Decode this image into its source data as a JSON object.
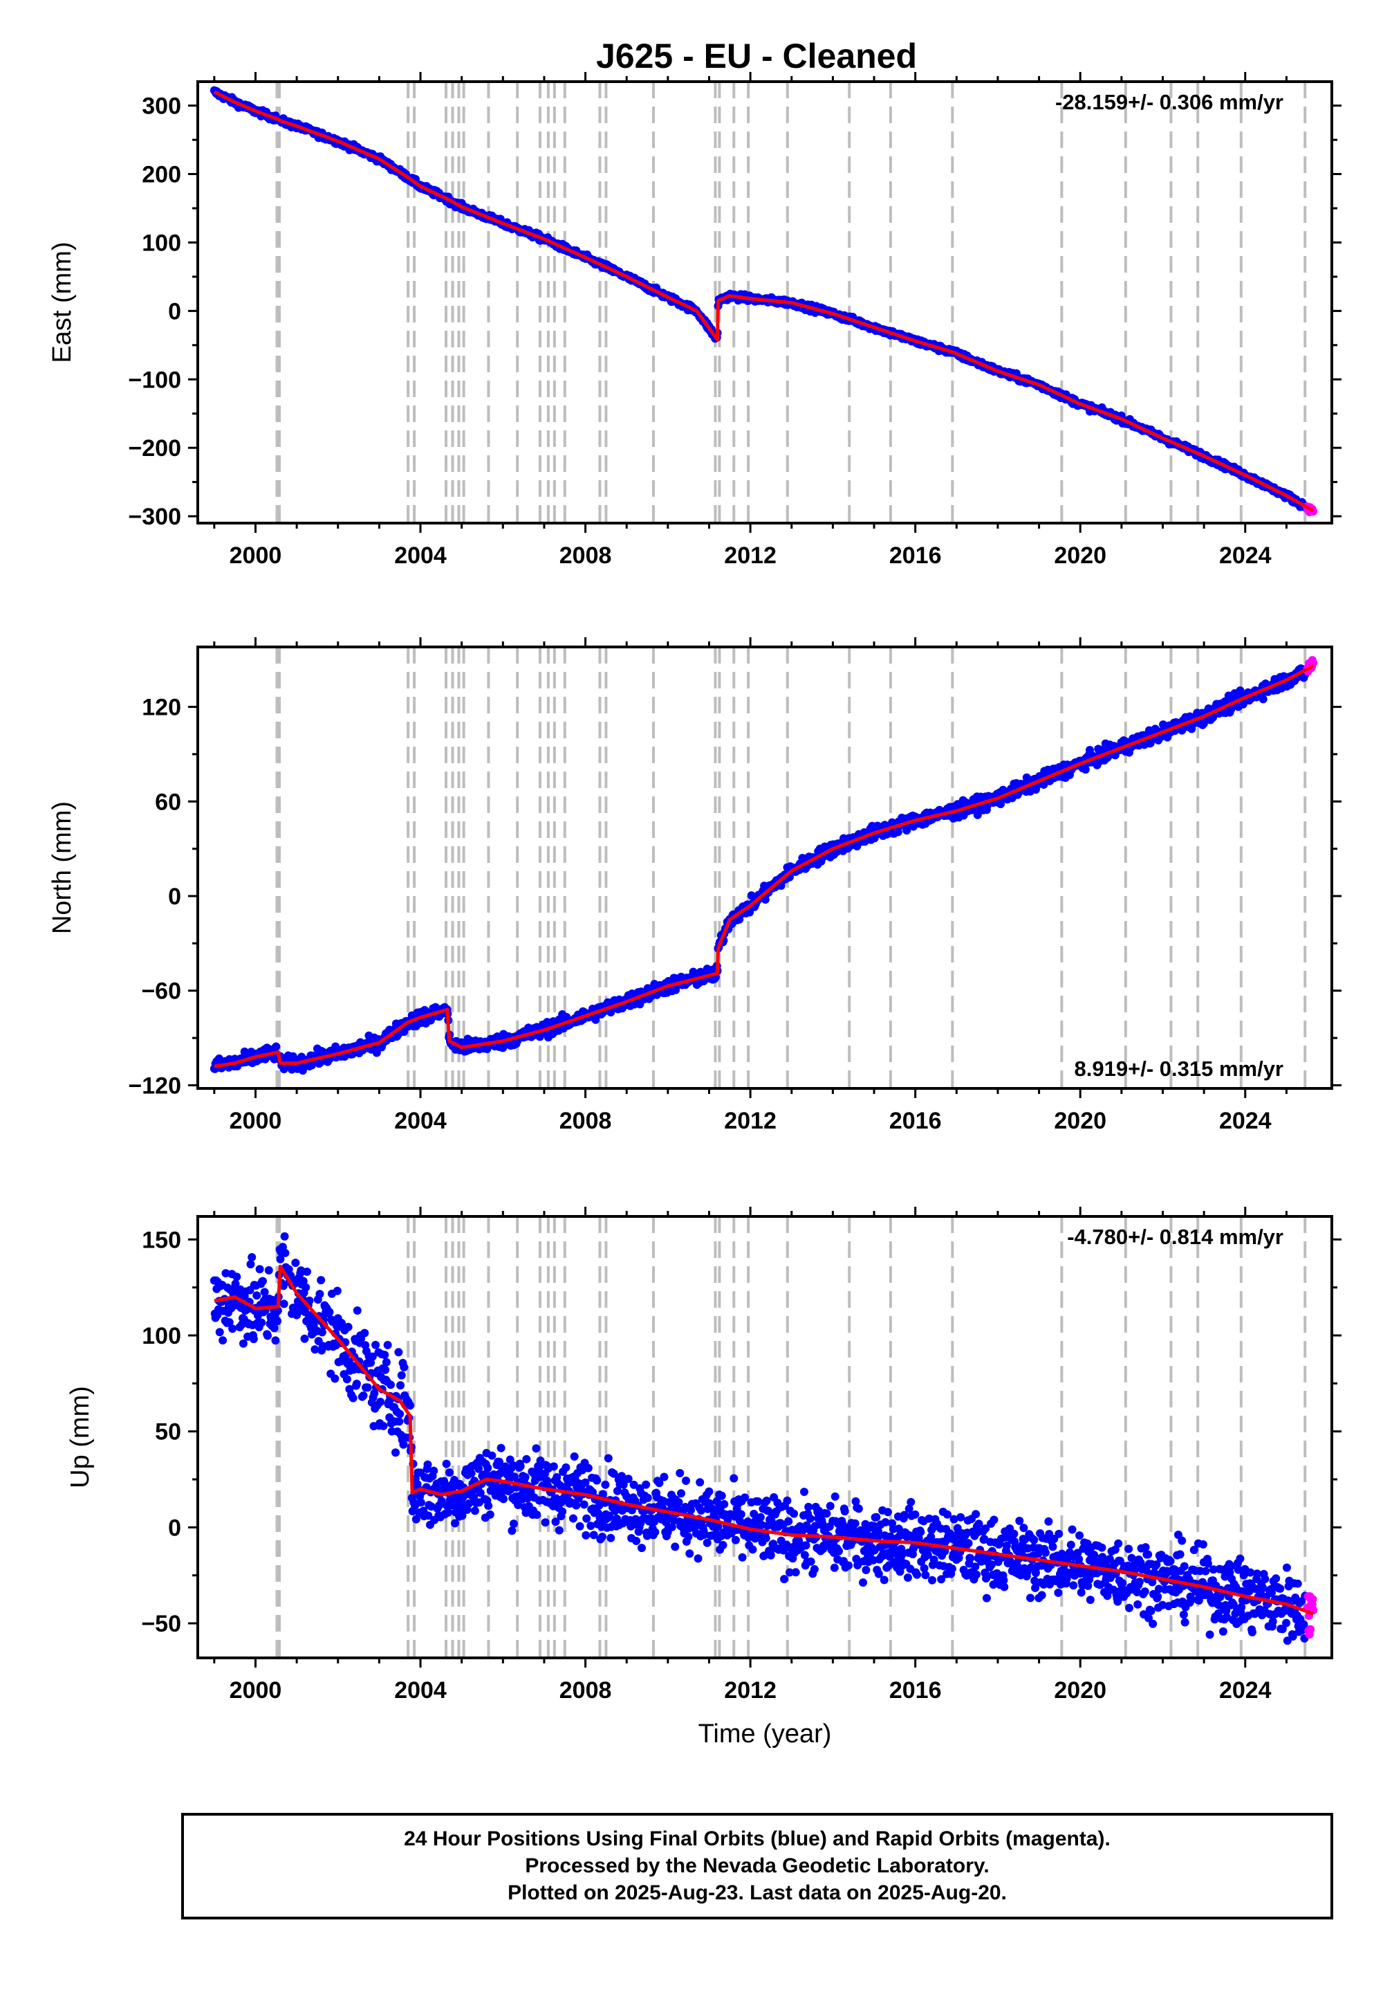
{
  "title": "J625  - EU - Cleaned",
  "colors": {
    "final": "#0000ff",
    "rapid": "#ff00ff",
    "model": "#ff0000",
    "event_lines": "#bdbdbd",
    "frame": "#000000"
  },
  "chart_data": [
    {
      "type": "scatter",
      "panel": "east",
      "ylabel": "East (mm)",
      "xlabel": "",
      "xlim": [
        1998.6,
        2026.1
      ],
      "ylim": [
        -310,
        335
      ],
      "xticks": [
        2000,
        2004,
        2008,
        2012,
        2016,
        2020,
        2024
      ],
      "xtick_labels": [
        "2000",
        "2004",
        "2008",
        "2012",
        "2016",
        "2020",
        "2024"
      ],
      "yticks": [
        300,
        200,
        100,
        0,
        -100,
        -200,
        -300
      ],
      "ytick_labels": [
        "300",
        "200",
        "100",
        "0",
        "−100",
        "−200",
        "−300"
      ],
      "rate_text": "-28.159+/- 0.306 mm/yr",
      "rate_position": "top-right",
      "series": [
        {
          "role": "final",
          "x": [
            1999.0,
            1999.5,
            2000.0,
            2000.55,
            2000.6,
            2001.0,
            2002.0,
            2003.0,
            2003.7,
            2004.0,
            2004.7,
            2005.0,
            2006.0,
            2007.0,
            2008.0,
            2009.0,
            2010.0,
            2010.7,
            2011.2,
            2011.22,
            2011.5,
            2012.0,
            2013.0,
            2014.0,
            2015.0,
            2016.0,
            2016.9,
            2018.0,
            2019.0,
            2020.0,
            2021.0,
            2022.0,
            2023.0,
            2024.0,
            2025.0,
            2025.45
          ],
          "y": [
            320,
            305,
            292,
            280,
            278,
            270,
            248,
            222,
            195,
            182,
            162,
            152,
            128,
            105,
            78,
            50,
            20,
            0,
            -42,
            15,
            22,
            18,
            12,
            -4,
            -24,
            -44,
            -60,
            -88,
            -108,
            -136,
            -158,
            -186,
            -212,
            -240,
            -270,
            -285
          ]
        },
        {
          "role": "rapid",
          "x": [
            2025.5,
            2025.65
          ],
          "y": [
            -288,
            -292
          ]
        }
      ],
      "model": {
        "x": [
          1999.0,
          1999.5,
          2000.0,
          2000.55,
          2000.6,
          2001.0,
          2002.0,
          2003.0,
          2003.7,
          2004.0,
          2004.7,
          2005.0,
          2006.0,
          2007.0,
          2008.0,
          2009.0,
          2010.0,
          2010.7,
          2011.2,
          2011.22,
          2011.5,
          2012.0,
          2013.0,
          2014.0,
          2015.0,
          2016.0,
          2016.9,
          2018.0,
          2019.0,
          2020.0,
          2021.0,
          2022.0,
          2023.0,
          2024.0,
          2025.0,
          2025.65
        ],
        "y": [
          320,
          305,
          292,
          280,
          278,
          270,
          248,
          222,
          195,
          182,
          162,
          152,
          128,
          105,
          78,
          50,
          20,
          0,
          -42,
          15,
          22,
          18,
          12,
          -4,
          -24,
          -44,
          -60,
          -88,
          -108,
          -136,
          -158,
          -186,
          -212,
          -240,
          -270,
          -292
        ]
      }
    },
    {
      "type": "scatter",
      "panel": "north",
      "ylabel": "North (mm)",
      "xlabel": "",
      "xlim": [
        1998.6,
        2026.1
      ],
      "ylim": [
        -122,
        158
      ],
      "xticks": [
        2000,
        2004,
        2008,
        2012,
        2016,
        2020,
        2024
      ],
      "xtick_labels": [
        "2000",
        "2004",
        "2008",
        "2012",
        "2016",
        "2020",
        "2024"
      ],
      "yticks": [
        120,
        60,
        0,
        -60,
        -120
      ],
      "ytick_labels": [
        "120",
        "60",
        "0",
        "−60",
        "−120"
      ],
      "rate_text": "8.919+/- 0.315 mm/yr",
      "rate_position": "bottom-right",
      "series": [
        {
          "role": "final",
          "x": [
            1999.0,
            1999.5,
            2000.0,
            2000.55,
            2000.6,
            2001.0,
            2002.0,
            2003.0,
            2003.7,
            2004.0,
            2004.65,
            2004.7,
            2005.0,
            2006.0,
            2007.0,
            2008.0,
            2009.0,
            2010.0,
            2011.2,
            2011.22,
            2011.5,
            2012.0,
            2013.0,
            2014.0,
            2015.0,
            2016.0,
            2017.0,
            2018.0,
            2019.0,
            2020.0,
            2021.0,
            2022.0,
            2023.0,
            2024.0,
            2025.0,
            2025.45
          ],
          "y": [
            -108,
            -106,
            -102,
            -99,
            -106,
            -106,
            -100,
            -93,
            -80,
            -77,
            -72,
            -92,
            -96,
            -92,
            -85,
            -76,
            -67,
            -57,
            -49,
            -33,
            -15,
            -6,
            16,
            30,
            40,
            48,
            54,
            62,
            73,
            84,
            94,
            104,
            114,
            126,
            137,
            142
          ]
        },
        {
          "role": "rapid",
          "x": [
            2025.5,
            2025.65
          ],
          "y": [
            144,
            148
          ]
        }
      ],
      "model": {
        "x": [
          1999.0,
          1999.5,
          2000.0,
          2000.55,
          2000.6,
          2001.0,
          2002.0,
          2003.0,
          2003.7,
          2004.0,
          2004.65,
          2004.7,
          2005.0,
          2006.0,
          2007.0,
          2008.0,
          2009.0,
          2010.0,
          2011.2,
          2011.22,
          2011.5,
          2012.0,
          2013.0,
          2014.0,
          2015.0,
          2016.0,
          2017.0,
          2018.0,
          2019.0,
          2020.0,
          2021.0,
          2022.0,
          2023.0,
          2024.0,
          2025.0,
          2025.65
        ],
        "y": [
          -108,
          -106,
          -102,
          -99,
          -106,
          -106,
          -100,
          -93,
          -80,
          -77,
          -72,
          -92,
          -96,
          -92,
          -85,
          -76,
          -67,
          -57,
          -49,
          -33,
          -15,
          -6,
          16,
          30,
          40,
          48,
          54,
          62,
          73,
          84,
          94,
          104,
          114,
          126,
          137,
          146
        ]
      }
    },
    {
      "type": "scatter",
      "panel": "up",
      "ylabel": "Up (mm)",
      "xlabel": "Time (year)",
      "xlim": [
        1998.6,
        2026.1
      ],
      "ylim": [
        -68,
        162
      ],
      "xticks": [
        2000,
        2004,
        2008,
        2012,
        2016,
        2020,
        2024
      ],
      "xtick_labels": [
        "2000",
        "2004",
        "2008",
        "2012",
        "2016",
        "2020",
        "2024"
      ],
      "yticks": [
        150,
        100,
        50,
        0,
        -50
      ],
      "ytick_labels": [
        "150",
        "100",
        "50",
        "0",
        "−50"
      ],
      "rate_text": "-4.780+/- 0.814 mm/yr",
      "rate_position": "top-right",
      "series": [
        {
          "role": "final",
          "x": [
            1999.0,
            1999.5,
            2000.0,
            2000.55,
            2000.6,
            2001.0,
            2001.5,
            2002.0,
            2002.5,
            2003.0,
            2003.5,
            2003.75,
            2003.8,
            2004.0,
            2004.5,
            2005.0,
            2005.6,
            2006.0,
            2007.0,
            2008.0,
            2009.0,
            2010.0,
            2011.0,
            2012.0,
            2013.0,
            2014.0,
            2015.0,
            2016.0,
            2017.0,
            2018.0,
            2019.0,
            2020.0,
            2021.0,
            2022.0,
            2023.0,
            2024.0,
            2025.0,
            2025.45
          ],
          "y": [
            118,
            120,
            114,
            115,
            136,
            122,
            110,
            98,
            85,
            72,
            66,
            58,
            18,
            20,
            17,
            19,
            25,
            24,
            20,
            17,
            12,
            8,
            4,
            -1,
            -4,
            -5,
            -7,
            -8,
            -11,
            -14,
            -17,
            -20,
            -23,
            -27,
            -31,
            -36,
            -40,
            -44
          ]
        },
        {
          "role": "rapid",
          "x": [
            2025.5,
            2025.65
          ],
          "y": [
            -44,
            -45
          ]
        }
      ],
      "model": {
        "x": [
          1999.0,
          1999.5,
          2000.0,
          2000.55,
          2000.6,
          2001.0,
          2001.5,
          2002.0,
          2002.5,
          2003.0,
          2003.5,
          2003.75,
          2003.8,
          2004.0,
          2004.5,
          2005.0,
          2005.6,
          2006.0,
          2007.0,
          2008.0,
          2009.0,
          2010.0,
          2011.0,
          2012.0,
          2013.0,
          2014.0,
          2015.0,
          2016.0,
          2017.0,
          2018.0,
          2019.0,
          2020.0,
          2021.0,
          2022.0,
          2023.0,
          2024.0,
          2025.0,
          2025.65
        ],
        "y": [
          118,
          120,
          114,
          115,
          136,
          122,
          110,
          98,
          85,
          72,
          66,
          58,
          18,
          20,
          17,
          19,
          25,
          24,
          20,
          17,
          12,
          8,
          4,
          -1,
          -4,
          -5,
          -7,
          -8,
          -11,
          -14,
          -17,
          -20,
          -23,
          -27,
          -31,
          -36,
          -40,
          -45
        ]
      }
    }
  ],
  "event_lines": [
    2000.52,
    2000.58,
    2003.7,
    2003.85,
    2004.62,
    2004.78,
    2004.93,
    2005.05,
    2005.65,
    2006.35,
    2006.9,
    2007.1,
    2007.25,
    2007.5,
    2008.35,
    2008.5,
    2009.65,
    2011.15,
    2011.25,
    2011.6,
    2011.95,
    2012.9,
    2014.4,
    2015.4,
    2016.9,
    2019.55,
    2021.1,
    2022.2,
    2022.85,
    2023.9,
    2025.45
  ],
  "footer": {
    "line1": "24 Hour Positions Using Final Orbits (blue) and Rapid Orbits (magenta).",
    "line2": "Processed by the Nevada Geodetic Laboratory.",
    "line3": "Plotted on 2025-Aug-23. Last data on 2025-Aug-20."
  }
}
